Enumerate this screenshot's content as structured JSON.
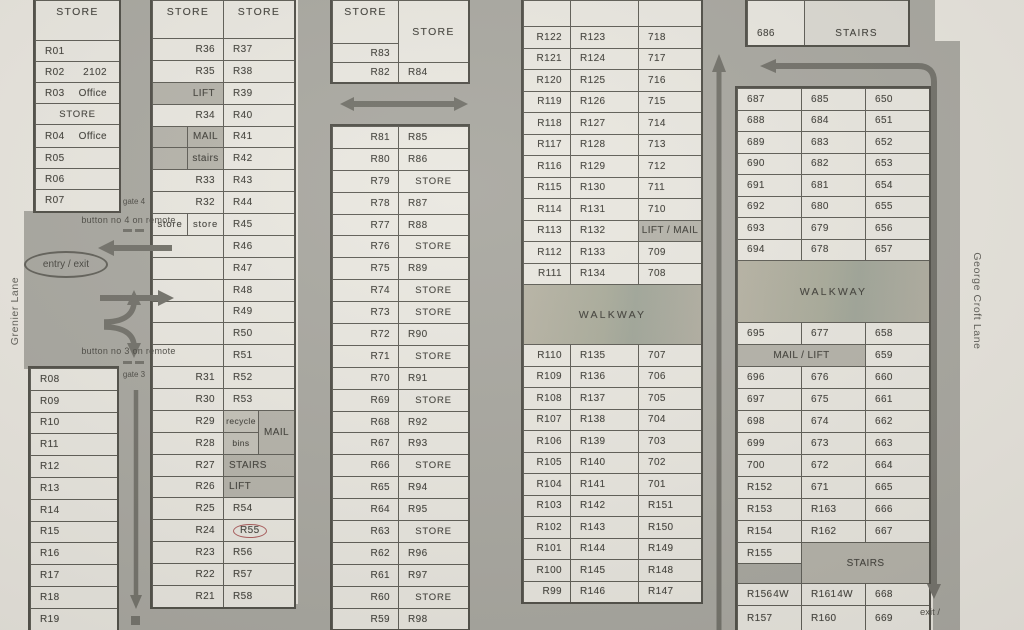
{
  "streets": {
    "left": "Grenier Lane",
    "right": "George Croft Lane"
  },
  "annotations": {
    "button_gate4": "button no 4 on remote",
    "button_gate3": "button no 3 on remote",
    "gate4": "gate 4",
    "gate3": "gate 3",
    "entry_exit": "entry /  exit",
    "exit": "exit /"
  },
  "highlighted_unit": "R55",
  "colors": {
    "paper": "#e9e6df",
    "driveway": "#a5a49d",
    "unit_fill": "#e9e7e0",
    "facility_gray": "#b2b0a7",
    "walkway_green": "#9ca295",
    "highlight_circle": "#a85454",
    "line": "#56554e"
  },
  "blocks": {
    "left_top": {
      "cells": [
        {
          "t": "STORE",
          "k": "header"
        },
        {
          "t": "R01"
        },
        {
          "t": "R02",
          "n": "2102"
        },
        {
          "t": "R03",
          "n": "Office"
        },
        {
          "t": "STORE",
          "k": "store"
        },
        {
          "t": "R04",
          "n": "Office"
        },
        {
          "t": "R05"
        },
        {
          "t": "R06"
        },
        {
          "t": "R07"
        }
      ]
    },
    "left_bottom": {
      "cells": [
        {
          "t": "R08"
        },
        {
          "t": "R09"
        },
        {
          "t": "R10"
        },
        {
          "t": "R11"
        },
        {
          "t": "R12"
        },
        {
          "t": "R13"
        },
        {
          "t": "R14"
        },
        {
          "t": "R15"
        },
        {
          "t": "R16"
        },
        {
          "t": "R17"
        },
        {
          "t": "R18"
        },
        {
          "t": "R19"
        }
      ]
    },
    "group2": {
      "cells": [
        {
          "t": "STORE",
          "k": "header",
          "cs": 2
        },
        {
          "t": "STORE",
          "k": "header",
          "cs": 2
        },
        {
          "t": "R36",
          "a": "r",
          "cs": 2
        },
        {
          "t": "R37",
          "cs": 2
        },
        {
          "t": "R35",
          "a": "r",
          "cs": 2
        },
        {
          "t": "R38",
          "cs": 2
        },
        {
          "t": "LIFT",
          "k": "gray",
          "a": "r",
          "cs": 2
        },
        {
          "t": "R39",
          "cs": 2
        },
        {
          "t": "R34",
          "a": "r",
          "cs": 2
        },
        {
          "t": "R40",
          "cs": 2
        },
        {
          "t": "",
          "k": "gray"
        },
        {
          "t": "MAIL",
          "k": "gray"
        },
        {
          "t": "R41",
          "cs": 2
        },
        {
          "t": "",
          "k": "gray"
        },
        {
          "t": "stairs",
          "k": "gray"
        },
        {
          "t": "R42",
          "cs": 2
        },
        {
          "t": "R33",
          "a": "r",
          "cs": 2
        },
        {
          "t": "R43",
          "cs": 2
        },
        {
          "t": "R32",
          "a": "r",
          "cs": 2
        },
        {
          "t": "R44",
          "cs": 2
        },
        {
          "t": "store",
          "k": "store"
        },
        {
          "t": "store",
          "k": "store"
        },
        {
          "t": "R45",
          "cs": 2
        },
        {
          "t": "",
          "cs": 2
        },
        {
          "t": "R46",
          "cs": 2
        },
        {
          "t": "",
          "cs": 2
        },
        {
          "t": "R47",
          "cs": 2
        },
        {
          "t": "",
          "cs": 2
        },
        {
          "t": "R48",
          "cs": 2
        },
        {
          "t": "",
          "cs": 2
        },
        {
          "t": "R49",
          "cs": 2
        },
        {
          "t": "",
          "cs": 2
        },
        {
          "t": "R50",
          "cs": 2
        },
        {
          "t": "",
          "cs": 2
        },
        {
          "t": "R51",
          "cs": 2
        },
        {
          "t": "R31",
          "a": "r",
          "cs": 2
        },
        {
          "t": "R52",
          "cs": 2
        },
        {
          "t": "R30",
          "a": "r",
          "cs": 2
        },
        {
          "t": "R53",
          "cs": 2
        },
        {
          "t": "R29",
          "a": "r",
          "cs": 2
        },
        {
          "t": "recycle",
          "k": "recycle"
        },
        {
          "t": "MAIL",
          "k": "gray",
          "rs": 2
        },
        {
          "t": "R28",
          "a": "r",
          "cs": 2
        },
        {
          "t": "bins",
          "k": "recycle"
        },
        {
          "t": "R27",
          "a": "r",
          "cs": 2
        },
        {
          "t": "STAIRS",
          "k": "gray",
          "a": "l",
          "cs": 2
        },
        {
          "t": "R26",
          "a": "r",
          "cs": 2
        },
        {
          "t": "LIFT",
          "k": "gray",
          "a": "l",
          "cs": 2
        },
        {
          "t": "R25",
          "a": "r",
          "cs": 2
        },
        {
          "t": "R54",
          "cs": 2
        },
        {
          "t": "R24",
          "a": "r",
          "cs": 2
        },
        {
          "t": "R55",
          "k": "circled",
          "cs": 2
        },
        {
          "t": "R23",
          "a": "r",
          "cs": 2
        },
        {
          "t": "R56",
          "cs": 2
        },
        {
          "t": "R22",
          "a": "r",
          "cs": 2
        },
        {
          "t": "R57",
          "cs": 2
        },
        {
          "t": "R21",
          "a": "r",
          "cs": 2
        },
        {
          "t": "R58",
          "cs": 2
        }
      ]
    },
    "group3_top": {
      "cells": [
        {
          "t": "STORE",
          "k": "header"
        },
        {
          "t": "STORE",
          "k": "headermid",
          "rs": 2
        },
        {
          "t": "R83",
          "a": "r"
        },
        {
          "t": "R82",
          "a": "r"
        },
        {
          "t": "R84"
        }
      ]
    },
    "group3_main": {
      "cells": [
        {
          "t": "R81",
          "a": "r"
        },
        {
          "t": "R85"
        },
        {
          "t": "R80",
          "a": "r"
        },
        {
          "t": "R86"
        },
        {
          "t": "R79",
          "a": "r"
        },
        {
          "t": "STORE",
          "k": "store"
        },
        {
          "t": "R78",
          "a": "r"
        },
        {
          "t": "R87"
        },
        {
          "t": "R77",
          "a": "r"
        },
        {
          "t": "R88"
        },
        {
          "t": "R76",
          "a": "r"
        },
        {
          "t": "STORE",
          "k": "store"
        },
        {
          "t": "R75",
          "a": "r"
        },
        {
          "t": "R89"
        },
        {
          "t": "R74",
          "a": "r"
        },
        {
          "t": "STORE",
          "k": "store"
        },
        {
          "t": "R73",
          "a": "r"
        },
        {
          "t": "STORE",
          "k": "store"
        },
        {
          "t": "R72",
          "a": "r"
        },
        {
          "t": "R90"
        },
        {
          "t": "R71",
          "a": "r"
        },
        {
          "t": "STORE",
          "k": "store"
        },
        {
          "t": "R70",
          "a": "r"
        },
        {
          "t": "R91"
        },
        {
          "t": "R69",
          "a": "r"
        },
        {
          "t": "STORE",
          "k": "store"
        },
        {
          "t": "R68",
          "a": "r"
        },
        {
          "t": "R92"
        },
        {
          "t": "R67",
          "a": "r"
        },
        {
          "t": "R93"
        },
        {
          "t": "R66",
          "a": "r"
        },
        {
          "t": "STORE",
          "k": "store"
        },
        {
          "t": "R65",
          "a": "r"
        },
        {
          "t": "R94"
        },
        {
          "t": "R64",
          "a": "r"
        },
        {
          "t": "R95"
        },
        {
          "t": "R63",
          "a": "r"
        },
        {
          "t": "STORE",
          "k": "store"
        },
        {
          "t": "R62",
          "a": "r"
        },
        {
          "t": "R96"
        },
        {
          "t": "R61",
          "a": "r"
        },
        {
          "t": "R97"
        },
        {
          "t": "R60",
          "a": "r"
        },
        {
          "t": "STORE",
          "k": "store"
        },
        {
          "t": "R59",
          "a": "r"
        },
        {
          "t": "R98"
        }
      ]
    },
    "group4": {
      "cells": [
        {
          "t": ""
        },
        {
          "t": ""
        },
        {
          "t": ""
        },
        {
          "t": "R122",
          "a": "r"
        },
        {
          "t": "R123"
        },
        {
          "t": "718"
        },
        {
          "t": "R121",
          "a": "r"
        },
        {
          "t": "R124"
        },
        {
          "t": "717"
        },
        {
          "t": "R120",
          "a": "r"
        },
        {
          "t": "R125"
        },
        {
          "t": "716"
        },
        {
          "t": "R119",
          "a": "r"
        },
        {
          "t": "R126"
        },
        {
          "t": "715"
        },
        {
          "t": "R118",
          "a": "r"
        },
        {
          "t": "R127"
        },
        {
          "t": "714"
        },
        {
          "t": "R117",
          "a": "r"
        },
        {
          "t": "R128"
        },
        {
          "t": "713"
        },
        {
          "t": "R116",
          "a": "r"
        },
        {
          "t": "R129"
        },
        {
          "t": "712"
        },
        {
          "t": "R115",
          "a": "r"
        },
        {
          "t": "R130"
        },
        {
          "t": "711"
        },
        {
          "t": "R114",
          "a": "r"
        },
        {
          "t": "R131"
        },
        {
          "t": "710"
        },
        {
          "t": "R113",
          "a": "r"
        },
        {
          "t": "R132"
        },
        {
          "t": "LIFT / MAIL",
          "k": "gray"
        },
        {
          "t": "R112",
          "a": "r"
        },
        {
          "t": "R133"
        },
        {
          "t": "709"
        },
        {
          "t": "R111",
          "a": "r"
        },
        {
          "t": "R134"
        },
        {
          "t": "708"
        },
        {
          "t": "WALKWAY",
          "k": "walkway",
          "cs": 3
        },
        {
          "t": "R110",
          "a": "r"
        },
        {
          "t": "R135"
        },
        {
          "t": "707"
        },
        {
          "t": "R109",
          "a": "r"
        },
        {
          "t": "R136"
        },
        {
          "t": "706"
        },
        {
          "t": "R108",
          "a": "r"
        },
        {
          "t": "R137"
        },
        {
          "t": "705"
        },
        {
          "t": "R107",
          "a": "r"
        },
        {
          "t": "R138"
        },
        {
          "t": "704"
        },
        {
          "t": "R106",
          "a": "r"
        },
        {
          "t": "R139"
        },
        {
          "t": "703"
        },
        {
          "t": "R105",
          "a": "r"
        },
        {
          "t": "R140"
        },
        {
          "t": "702"
        },
        {
          "t": "R104",
          "a": "r"
        },
        {
          "t": "R141"
        },
        {
          "t": "701"
        },
        {
          "t": "R103",
          "a": "r"
        },
        {
          "t": "R142"
        },
        {
          "t": "R151"
        },
        {
          "t": "R102",
          "a": "r"
        },
        {
          "t": "R143"
        },
        {
          "t": "R150"
        },
        {
          "t": "R101",
          "a": "r"
        },
        {
          "t": "R144"
        },
        {
          "t": "R149"
        },
        {
          "t": "R100",
          "a": "r"
        },
        {
          "t": "R145"
        },
        {
          "t": "R148"
        },
        {
          "t": "R99",
          "a": "r"
        },
        {
          "t": "R146"
        },
        {
          "t": "R147"
        }
      ]
    },
    "group5_top": {
      "cells": [
        {
          "t": "686"
        },
        {
          "t": "STAIRS",
          "k": "light"
        }
      ]
    },
    "group5_main": {
      "cells": [
        {
          "t": "687"
        },
        {
          "t": "685"
        },
        {
          "t": "650"
        },
        {
          "t": "688"
        },
        {
          "t": "684"
        },
        {
          "t": "651"
        },
        {
          "t": "689"
        },
        {
          "t": "683"
        },
        {
          "t": "652"
        },
        {
          "t": "690"
        },
        {
          "t": "682"
        },
        {
          "t": "653"
        },
        {
          "t": "691"
        },
        {
          "t": "681"
        },
        {
          "t": "654"
        },
        {
          "t": "692"
        },
        {
          "t": "680"
        },
        {
          "t": "655"
        },
        {
          "t": "693"
        },
        {
          "t": "679"
        },
        {
          "t": "656"
        },
        {
          "t": "694"
        },
        {
          "t": "678"
        },
        {
          "t": "657"
        },
        {
          "t": "WALKWAY",
          "k": "walkway",
          "cs": 3
        },
        {
          "t": "695"
        },
        {
          "t": "677"
        },
        {
          "t": "658"
        },
        {
          "t": "MAIL / LIFT",
          "k": "gray",
          "cs": 2
        },
        {
          "t": "659"
        },
        {
          "t": "696"
        },
        {
          "t": "676"
        },
        {
          "t": "660"
        },
        {
          "t": "697"
        },
        {
          "t": "675"
        },
        {
          "t": "661"
        },
        {
          "t": "698"
        },
        {
          "t": "674"
        },
        {
          "t": "662"
        },
        {
          "t": "699"
        },
        {
          "t": "673"
        },
        {
          "t": "663"
        },
        {
          "t": "700"
        },
        {
          "t": "672"
        },
        {
          "t": "664"
        },
        {
          "t": "R152"
        },
        {
          "t": "671"
        },
        {
          "t": "665"
        },
        {
          "t": "R153"
        },
        {
          "t": "R163"
        },
        {
          "t": "666"
        },
        {
          "t": "R154"
        },
        {
          "t": "R162"
        },
        {
          "t": "667"
        },
        {
          "t": "R155"
        },
        {
          "t": "STAIRS",
          "k": "gray",
          "cs": 2,
          "rs": 2
        },
        {
          "t": "",
          "k": "lane"
        },
        {
          "t": "R156",
          "n": "4W"
        },
        {
          "t": "R161",
          "n": "4W"
        },
        {
          "t": "668"
        },
        {
          "t": "R157"
        },
        {
          "t": "R160"
        },
        {
          "t": "669"
        }
      ]
    }
  }
}
